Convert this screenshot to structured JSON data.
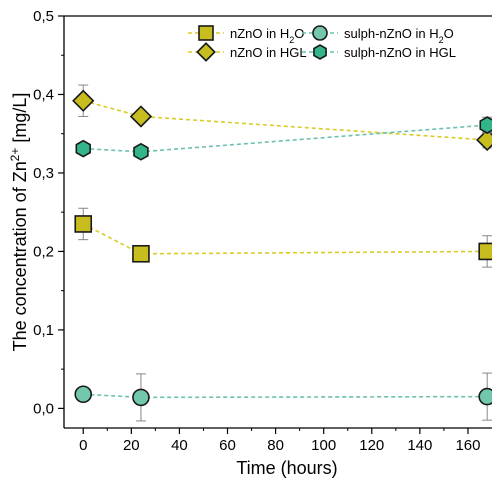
{
  "chart_data": {
    "type": "scatter",
    "xlabel": "Time (hours)",
    "ylabel_prefix": "The concentration of Zn",
    "ylabel_sup": "2+",
    "ylabel_suffix": " [mg/L]",
    "xlim": [
      -8,
      170
    ],
    "ylim": [
      -0.025,
      0.5
    ],
    "x_ticks": [
      0,
      20,
      40,
      60,
      80,
      100,
      120,
      140,
      160
    ],
    "y_ticks": [
      0.0,
      0.1,
      0.2,
      0.3,
      0.4,
      0.5
    ],
    "y_tick_labels": [
      "0,0",
      "0,1",
      "0,2",
      "0,3",
      "0,4",
      "0,5"
    ],
    "grid": false,
    "legend_placement": "top-right",
    "series": [
      {
        "name_main": "nZnO in H",
        "name_sub": "2",
        "name_end": "O",
        "marker": "square",
        "color": "#c8bd1e",
        "line_color": "#d7cc2a",
        "x": [
          0,
          24,
          168
        ],
        "y": [
          0.235,
          0.197,
          0.2
        ],
        "err": [
          0.02,
          0.008,
          0.02
        ]
      },
      {
        "name_main": "nZnO in HGL",
        "marker": "diamond",
        "color": "#c8bd1e",
        "line_color": "#d7cc2a",
        "x": [
          0,
          24,
          168
        ],
        "y": [
          0.392,
          0.372,
          0.342
        ],
        "err": [
          0.02,
          0.006,
          0.01
        ]
      },
      {
        "name_main": "sulph-nZnO in H",
        "name_sub": "2",
        "name_end": "O",
        "marker": "circle",
        "color": "#72c7ad",
        "line_color": "#6bc1b0",
        "x": [
          0,
          24,
          168
        ],
        "y": [
          0.018,
          0.014,
          0.015
        ],
        "err": [
          0.005,
          0.03,
          0.03
        ]
      },
      {
        "name_main": "sulph-nZnO in HGL",
        "marker": "hexagon",
        "color": "#33b58c",
        "line_color": "#6bc1b0",
        "x": [
          0,
          24,
          168
        ],
        "y": [
          0.331,
          0.327,
          0.361
        ],
        "err": [
          0.006,
          0.004,
          0.01
        ]
      }
    ]
  }
}
